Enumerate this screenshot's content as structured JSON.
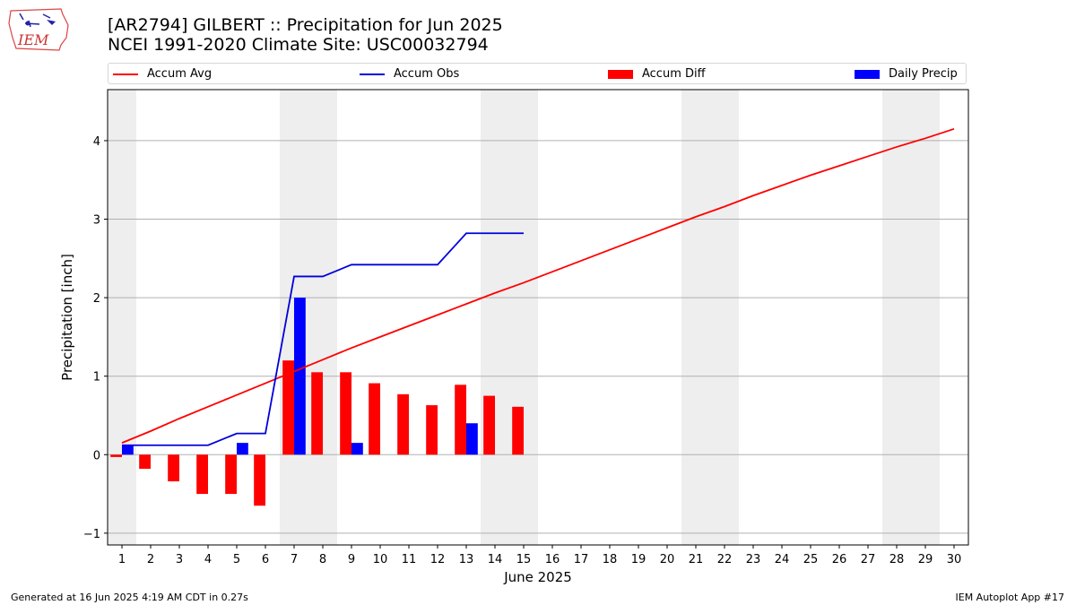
{
  "header": {
    "logo_text": "IEM",
    "title_line1": "[AR2794] GILBERT :: Precipitation for Jun 2025",
    "title_line2": "NCEI 1991-2020 Climate Site: USC00032794"
  },
  "footer": {
    "left": "Generated at 16 Jun 2025 4:19 AM CDT in 0.27s",
    "right": "IEM Autoplot App #17"
  },
  "colors": {
    "accum_avg": "#ff0000",
    "accum_obs": "#0000dd",
    "accum_diff": "#ff0000",
    "daily_precip": "#0000ff",
    "weekend_shade": "#eeeeee",
    "grid": "#b0b0b0"
  },
  "chart_data": {
    "type": "bar",
    "xlabel": "June 2025",
    "ylabel": "Precipitation [inch]",
    "xlim": [
      0.5,
      30.5
    ],
    "ylim": [
      -1.15,
      4.65
    ],
    "yticks": [
      -1,
      0,
      1,
      2,
      3,
      4
    ],
    "xticks": [
      1,
      2,
      3,
      4,
      5,
      6,
      7,
      8,
      9,
      10,
      11,
      12,
      13,
      14,
      15,
      16,
      17,
      18,
      19,
      20,
      21,
      22,
      23,
      24,
      25,
      26,
      27,
      28,
      29,
      30
    ],
    "grid": "horizontal",
    "legend_placement": "top",
    "weekend_days": [
      1,
      7,
      8,
      14,
      15,
      21,
      22,
      28,
      29
    ],
    "series": [
      {
        "name": "Accum Avg",
        "kind": "line",
        "x": [
          1,
          2,
          3,
          4,
          5,
          6,
          7,
          8,
          9,
          10,
          11,
          12,
          13,
          14,
          15,
          16,
          17,
          18,
          19,
          20,
          21,
          22,
          23,
          24,
          25,
          26,
          27,
          28,
          29,
          30
        ],
        "values": [
          0.15,
          0.3,
          0.46,
          0.61,
          0.76,
          0.91,
          1.06,
          1.21,
          1.36,
          1.5,
          1.64,
          1.78,
          1.92,
          2.06,
          2.19,
          2.33,
          2.47,
          2.61,
          2.75,
          2.89,
          3.03,
          3.16,
          3.3,
          3.43,
          3.56,
          3.68,
          3.8,
          3.92,
          4.03,
          4.15
        ]
      },
      {
        "name": "Accum Obs",
        "kind": "line",
        "x": [
          1,
          2,
          3,
          4,
          5,
          6,
          7,
          8,
          9,
          10,
          11,
          12,
          13,
          14,
          15
        ],
        "values": [
          0.12,
          0.12,
          0.12,
          0.12,
          0.27,
          0.27,
          2.27,
          2.27,
          2.42,
          2.42,
          2.42,
          2.42,
          2.82,
          2.82,
          2.82
        ]
      },
      {
        "name": "Accum Diff",
        "kind": "bar",
        "x": [
          1,
          2,
          3,
          4,
          5,
          6,
          7,
          8,
          9,
          10,
          11,
          12,
          13,
          14,
          15
        ],
        "values": [
          -0.03,
          -0.18,
          -0.34,
          -0.5,
          -0.5,
          -0.65,
          1.2,
          1.05,
          1.05,
          0.91,
          0.77,
          0.63,
          0.89,
          0.75,
          0.61
        ]
      },
      {
        "name": "Daily Precip",
        "kind": "bar",
        "x": [
          1,
          2,
          3,
          4,
          5,
          6,
          7,
          8,
          9,
          10,
          11,
          12,
          13,
          14,
          15
        ],
        "values": [
          0.12,
          0,
          0,
          0,
          0.15,
          0,
          2.0,
          0,
          0.15,
          0,
          0,
          0,
          0.4,
          0,
          0
        ]
      }
    ]
  }
}
